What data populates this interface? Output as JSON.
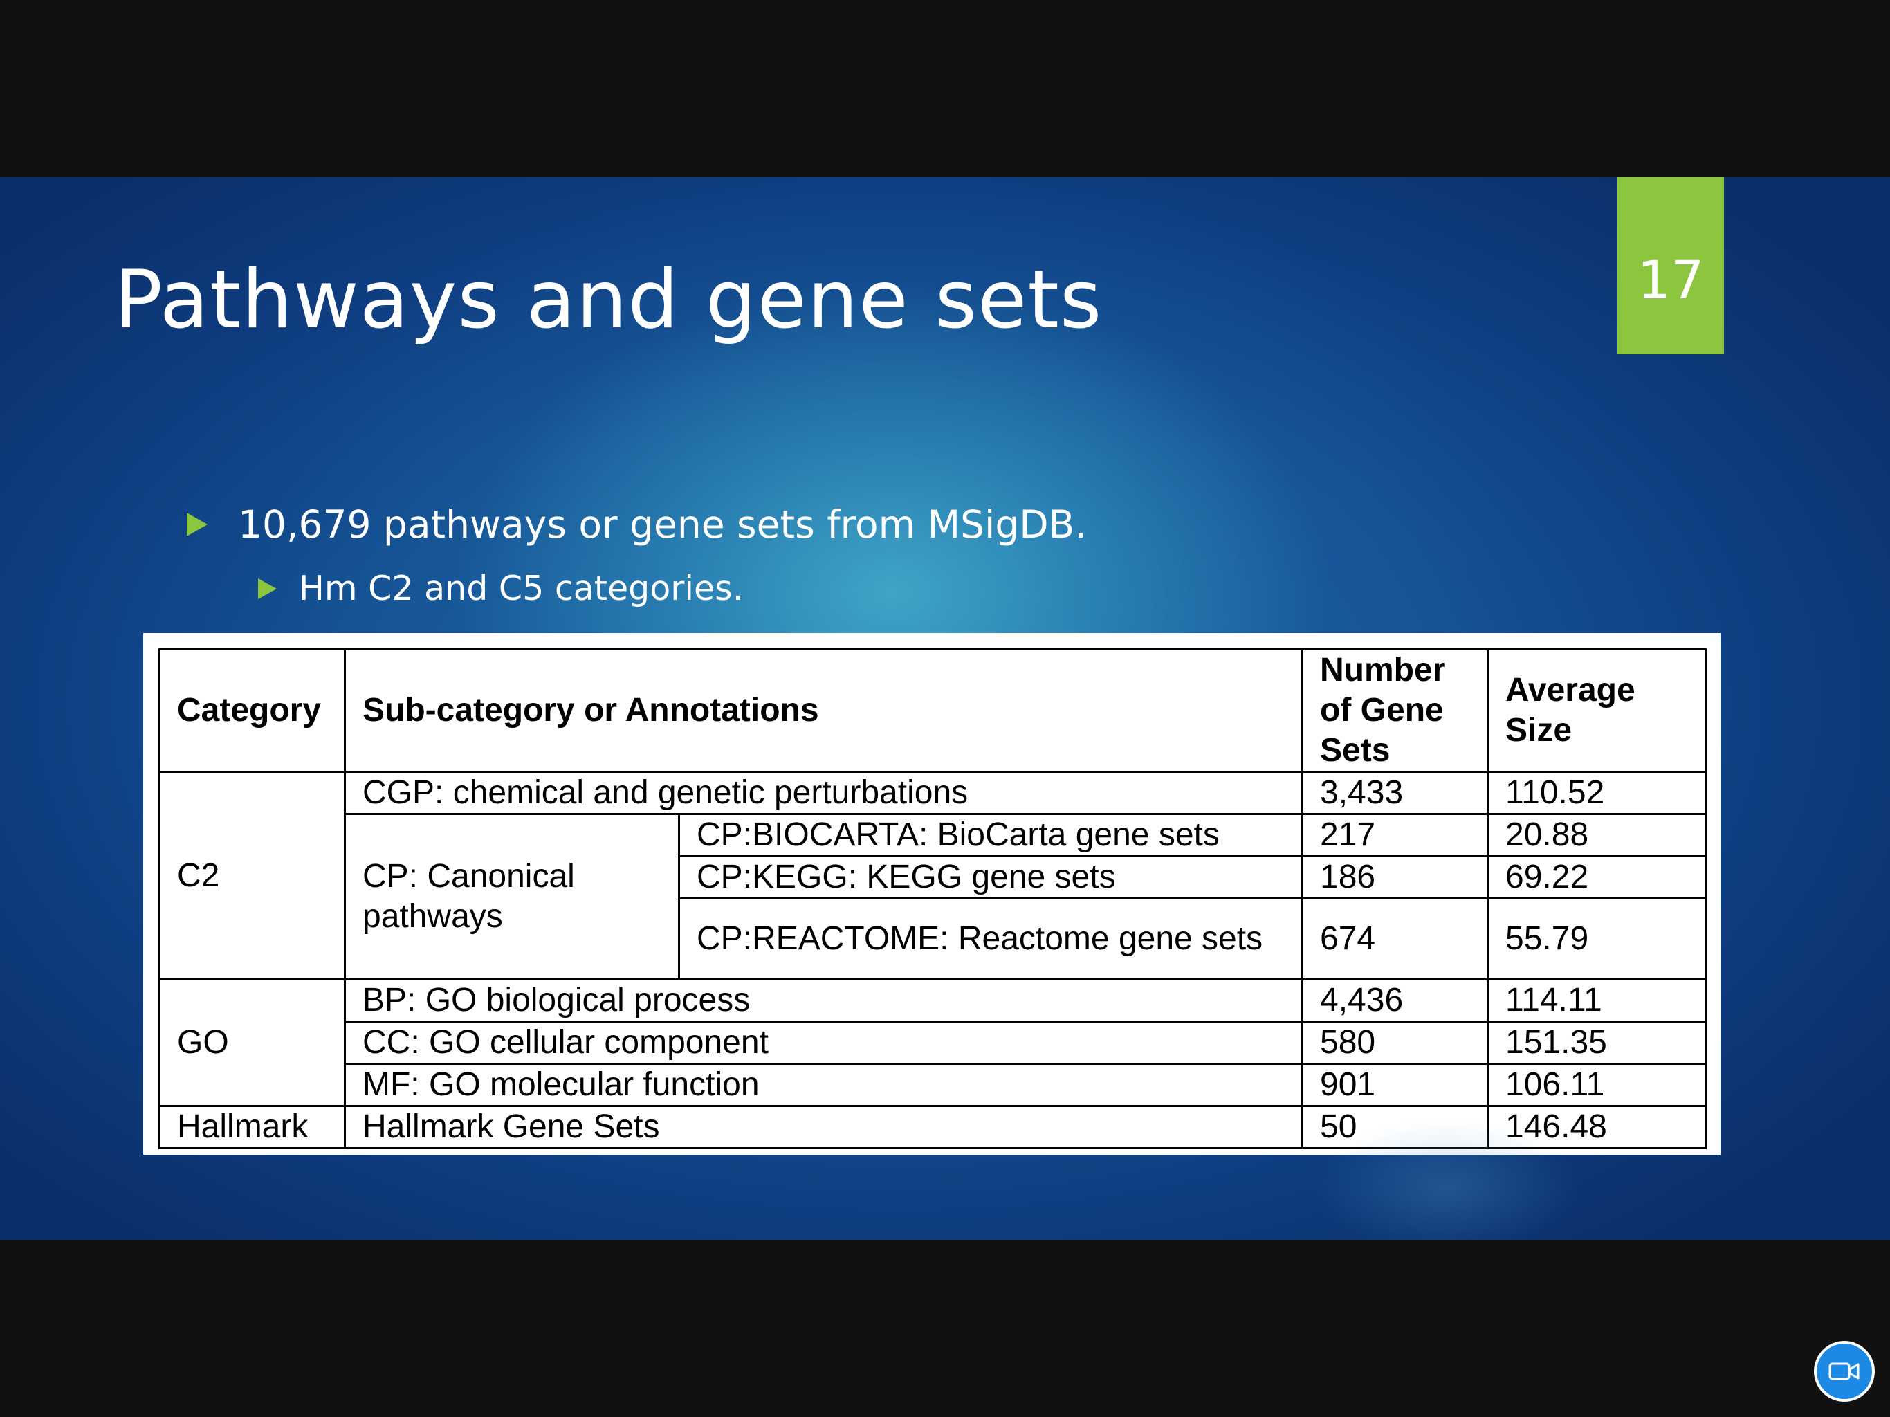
{
  "slide": {
    "title": "Pathways and gene sets",
    "number": "17",
    "accent_color": "#8cc63f",
    "bullets": [
      "10,679 pathways or gene sets from MSigDB.",
      "Hm C2 and C5 categories."
    ]
  },
  "table": {
    "headers": {
      "category": "Category",
      "subcategory": "Sub-category or Annotations",
      "number": "Number of Gene Sets",
      "average": "Average Size"
    },
    "c2": {
      "category": "C2",
      "cgp": {
        "label": "CGP: chemical and genetic perturbations",
        "number": "3,433",
        "average": "110.52"
      },
      "cp_label": "CP: Canonical pathways",
      "biocarta": {
        "label": "CP:BIOCARTA: BioCarta gene sets",
        "number": "217",
        "average": "20.88"
      },
      "kegg": {
        "label": "CP:KEGG: KEGG gene sets",
        "number": "186",
        "average": "69.22"
      },
      "reactome": {
        "label": "CP:REACTOME: Reactome gene sets",
        "number": "674",
        "average": "55.79"
      }
    },
    "go": {
      "category": "GO",
      "bp": {
        "label": "BP: GO biological process",
        "number": "4,436",
        "average": "114.11"
      },
      "cc": {
        "label": "CC: GO cellular component",
        "number": "580",
        "average": "151.35"
      },
      "mf": {
        "label": "MF: GO molecular function",
        "number": "901",
        "average": "106.11"
      }
    },
    "hallmark": {
      "category": "Hallmark",
      "label": "Hallmark Gene Sets",
      "number": "50",
      "average": "146.48"
    }
  },
  "controls": {
    "camera_icon": "video-camera-icon",
    "camera_color": "#1e88e5"
  }
}
